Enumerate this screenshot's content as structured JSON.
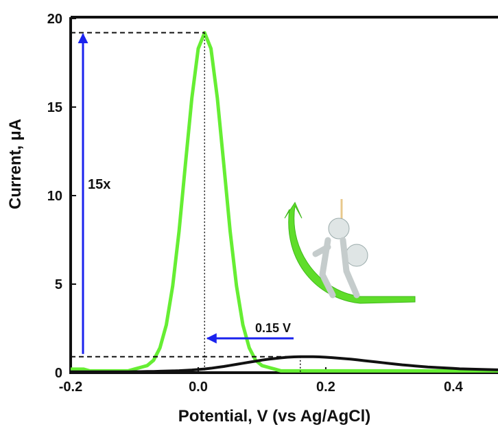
{
  "chart_data": {
    "type": "line",
    "x_label": "Potential, V (vs Ag/AgCl)",
    "y_label": "Current, μA",
    "annotations": [
      "15x",
      "0.15 V"
    ],
    "xlim": [
      -0.2,
      0.47
    ],
    "ylim": [
      0,
      20
    ],
    "xticks": [
      -0.2,
      {
        "value": 0,
        "label": "0.0"
      },
      0.2,
      0.4
    ],
    "yticks": [
      0,
      5,
      10,
      15,
      20
    ],
    "x": [
      -0.2,
      -0.19,
      -0.18,
      -0.17,
      -0.16,
      -0.15,
      -0.14,
      -0.13,
      -0.12,
      -0.11,
      -0.1,
      -0.09,
      -0.08,
      -0.07,
      -0.06,
      -0.05,
      -0.04,
      -0.03,
      -0.02,
      -0.01,
      0,
      0.01,
      0.02,
      0.03,
      0.04,
      0.05,
      0.06,
      0.07,
      0.08,
      0.09,
      0.1,
      0.11,
      0.12,
      0.13,
      0.14,
      0.15,
      0.16,
      0.17,
      0.18,
      0.19,
      0.2,
      0.21,
      0.22,
      0.23,
      0.24,
      0.25,
      0.26,
      0.27,
      0.28,
      0.29,
      0.3,
      0.31,
      0.32,
      0.33,
      0.34,
      0.35,
      0.36,
      0.37,
      0.38,
      0.39,
      0.4,
      0.41,
      0.42,
      0.43,
      0.44,
      0.45,
      0.46,
      0.47
    ],
    "series": [
      {
        "color": "#66ee33",
        "values": [
          0.2,
          0.2,
          0.2,
          0.1,
          0.1,
          0.1,
          0.1,
          0.1,
          0.1,
          0.1,
          0.2,
          0.3,
          0.4,
          0.7,
          1.4,
          2.7,
          4.9,
          8.0,
          11.8,
          15.5,
          18.3,
          19.2,
          18.3,
          15.5,
          11.8,
          8.0,
          4.9,
          2.7,
          1.4,
          0.7,
          0.4,
          0.3,
          0.2,
          0.1,
          0.1,
          0.1,
          0.1,
          0.1,
          0.1,
          0.1,
          0.1,
          0.1,
          0.1,
          0.1,
          0.1,
          0.1,
          0.1,
          0.1,
          0.1,
          0.1,
          0.1,
          0.1,
          0.1,
          0.1,
          0.1,
          0.1,
          0.1,
          0.1,
          0.1,
          0.1,
          0.1,
          0.1,
          0.1,
          0.1,
          0.1,
          0.1,
          0.1,
          0.1
        ]
      },
      {
        "color": "#111111",
        "values": [
          0.05,
          0.05,
          0.05,
          0.05,
          0.05,
          0.05,
          0.05,
          0.05,
          0.05,
          0.05,
          0.06,
          0.06,
          0.07,
          0.07,
          0.08,
          0.09,
          0.1,
          0.11,
          0.13,
          0.15,
          0.18,
          0.21,
          0.25,
          0.3,
          0.35,
          0.41,
          0.47,
          0.53,
          0.59,
          0.65,
          0.71,
          0.76,
          0.8,
          0.84,
          0.87,
          0.89,
          0.9,
          0.9,
          0.9,
          0.89,
          0.87,
          0.85,
          0.82,
          0.79,
          0.76,
          0.72,
          0.68,
          0.64,
          0.6,
          0.56,
          0.52,
          0.48,
          0.44,
          0.41,
          0.38,
          0.35,
          0.32,
          0.3,
          0.28,
          0.26,
          0.24,
          0.22,
          0.21,
          0.2,
          0.19,
          0.18,
          0.17,
          0.16
        ]
      }
    ]
  }
}
